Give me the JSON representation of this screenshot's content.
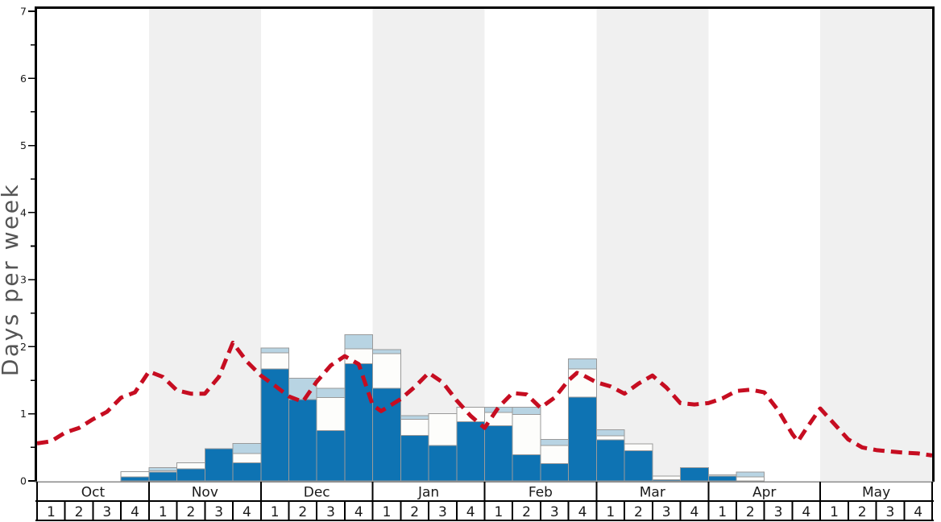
{
  "y_axis": {
    "label": "Days per week",
    "min": 0,
    "max": 7,
    "major_tick_step": 1,
    "minor_tick_step": 0.5,
    "tick_labels": [
      "0",
      "1",
      "2",
      "3",
      "4",
      "5",
      "6",
      "7"
    ]
  },
  "x_axis": {
    "months": [
      {
        "name": "Oct",
        "weeks": [
          "1",
          "2",
          "3",
          "4"
        ]
      },
      {
        "name": "Nov",
        "weeks": [
          "1",
          "2",
          "3",
          "4"
        ]
      },
      {
        "name": "Dec",
        "weeks": [
          "1",
          "2",
          "3",
          "4"
        ]
      },
      {
        "name": "Jan",
        "weeks": [
          "1",
          "2",
          "3",
          "4"
        ]
      },
      {
        "name": "Feb",
        "weeks": [
          "1",
          "2",
          "3",
          "4"
        ]
      },
      {
        "name": "Mar",
        "weeks": [
          "1",
          "2",
          "3",
          "4"
        ]
      },
      {
        "name": "Apr",
        "weeks": [
          "1",
          "2",
          "3",
          "4"
        ]
      },
      {
        "name": "May",
        "weeks": [
          "1",
          "2",
          "3",
          "4"
        ]
      }
    ]
  },
  "colors": {
    "dark_blue": "#0e73b3",
    "white_segment": "#fdfdfb",
    "light_blue": "#b8d4e3",
    "red_line": "#c60d21",
    "bar_border": "#9a9a9a",
    "band_gray": "#f0f0f0",
    "axis_black": "#000000",
    "baseline_gray": "#8a8a8a",
    "tick_text": "#1a1a1a",
    "y_title_gray": "#555555"
  },
  "chart_data": {
    "type": "bar",
    "stacked": true,
    "title": "",
    "xlabel": "",
    "ylabel": "Days per week",
    "ylim": [
      0,
      7
    ],
    "grid": false,
    "legend": "none",
    "categories": [
      "Oct-1",
      "Oct-2",
      "Oct-3",
      "Oct-4",
      "Nov-1",
      "Nov-2",
      "Nov-3",
      "Nov-4",
      "Dec-1",
      "Dec-2",
      "Dec-3",
      "Dec-4",
      "Jan-1",
      "Jan-2",
      "Jan-3",
      "Jan-4",
      "Feb-1",
      "Feb-2",
      "Feb-3",
      "Feb-4",
      "Mar-1",
      "Mar-2",
      "Mar-3",
      "Mar-4",
      "Apr-1",
      "Apr-2",
      "Apr-3",
      "Apr-4",
      "May-1",
      "May-2",
      "May-3",
      "May-4"
    ],
    "series": [
      {
        "name": "dark-blue-days",
        "color": "#0e73b3",
        "values": [
          0,
          0,
          0,
          0.06,
          0.13,
          0.18,
          0.48,
          0.27,
          1.67,
          1.21,
          0.75,
          1.75,
          1.38,
          0.68,
          0.53,
          0.88,
          0.82,
          0.39,
          0.26,
          1.25,
          0.61,
          0.45,
          0.02,
          0.2,
          0.07,
          0,
          0,
          0,
          0,
          0,
          0,
          0
        ]
      },
      {
        "name": "white-days",
        "color": "#fdfdfb",
        "values": [
          0,
          0,
          0,
          0.08,
          0.02,
          0.09,
          0,
          0.14,
          0.24,
          0,
          0.49,
          0.22,
          0.52,
          0.24,
          0.47,
          0.22,
          0.2,
          0.6,
          0.27,
          0.42,
          0.06,
          0.1,
          0.05,
          0,
          0.02,
          0.06,
          0,
          0,
          0,
          0,
          0,
          0
        ]
      },
      {
        "name": "light-blue-days",
        "color": "#b8d4e3",
        "values": [
          0,
          0,
          0,
          0,
          0.05,
          0,
          0,
          0.15,
          0.07,
          0.32,
          0.14,
          0.21,
          0.06,
          0.05,
          0,
          0,
          0.08,
          0.11,
          0.09,
          0.15,
          0.09,
          0,
          0,
          0,
          0,
          0.07,
          0,
          0,
          0,
          0,
          0,
          0
        ]
      }
    ],
    "line": {
      "name": "red-dashed-average-line",
      "color": "#c60d21",
      "style": "dashed",
      "points_week_units": [
        [
          0,
          0.56
        ],
        [
          0.5,
          0.59
        ],
        [
          1,
          0.72
        ],
        [
          1.5,
          0.79
        ],
        [
          2,
          0.92
        ],
        [
          2.5,
          1.03
        ],
        [
          3,
          1.24
        ],
        [
          3.5,
          1.32
        ],
        [
          4,
          1.63
        ],
        [
          4.5,
          1.55
        ],
        [
          5,
          1.35
        ],
        [
          5.5,
          1.3
        ],
        [
          6,
          1.3
        ],
        [
          6.5,
          1.55
        ],
        [
          7,
          2.06
        ],
        [
          7.5,
          1.78
        ],
        [
          8,
          1.57
        ],
        [
          8.5,
          1.42
        ],
        [
          9,
          1.26
        ],
        [
          9.5,
          1.18
        ],
        [
          10,
          1.48
        ],
        [
          10.5,
          1.72
        ],
        [
          11,
          1.86
        ],
        [
          11.5,
          1.74
        ],
        [
          12,
          1.13
        ],
        [
          12.3,
          1.04
        ],
        [
          12.5,
          1.09
        ],
        [
          13,
          1.22
        ],
        [
          13.5,
          1.4
        ],
        [
          14,
          1.61
        ],
        [
          14.5,
          1.47
        ],
        [
          15,
          1.2
        ],
        [
          15.5,
          0.97
        ],
        [
          16,
          0.79
        ],
        [
          16.5,
          1.1
        ],
        [
          17,
          1.31
        ],
        [
          17.5,
          1.29
        ],
        [
          18,
          1.09
        ],
        [
          18.5,
          1.24
        ],
        [
          19,
          1.5
        ],
        [
          19.3,
          1.61
        ],
        [
          19.5,
          1.58
        ],
        [
          20,
          1.47
        ],
        [
          20.5,
          1.41
        ],
        [
          21,
          1.3
        ],
        [
          21.5,
          1.45
        ],
        [
          22,
          1.57
        ],
        [
          22.5,
          1.39
        ],
        [
          23,
          1.16
        ],
        [
          23.5,
          1.14
        ],
        [
          24,
          1.16
        ],
        [
          24.5,
          1.23
        ],
        [
          25,
          1.34
        ],
        [
          25.5,
          1.36
        ],
        [
          26,
          1.32
        ],
        [
          26.5,
          1.05
        ],
        [
          27,
          0.7
        ],
        [
          27.2,
          0.59
        ],
        [
          27.5,
          0.78
        ],
        [
          28,
          1.08
        ],
        [
          28.5,
          0.85
        ],
        [
          29,
          0.62
        ],
        [
          29.5,
          0.5
        ],
        [
          30,
          0.46
        ],
        [
          30.5,
          0.44
        ],
        [
          31,
          0.42
        ],
        [
          31.5,
          0.41
        ],
        [
          32,
          0.38
        ]
      ]
    }
  }
}
